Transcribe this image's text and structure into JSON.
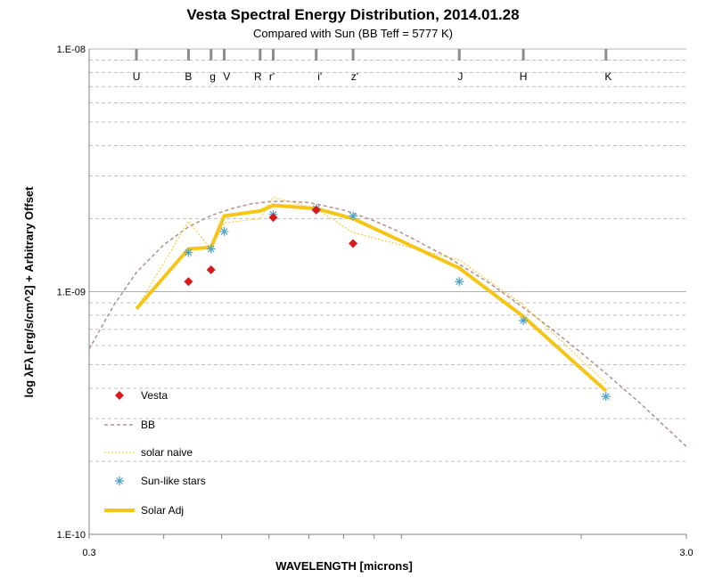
{
  "chart_data": {
    "type": "scatter",
    "title": "Vesta Spectral Energy Distribution, 2014.01.28",
    "subtitle": "Compared with Sun (BB Teff = 5777 K)",
    "xlabel": "WAVELENGTH [microns]",
    "ylabel": "log λFλ [erg/s/cm^2] + Arbitrary Offset",
    "x_scale": "log",
    "y_scale": "log",
    "xlim": [
      0.3,
      3.0
    ],
    "ylim": [
      1e-10,
      1e-08
    ],
    "x_tick_labels": [
      "0.3",
      "3.0"
    ],
    "y_ticks": [
      {
        "value": 1e-08,
        "label": "1.E-08"
      },
      {
        "value": 1e-09,
        "label": "1.E-09"
      },
      {
        "value": 1e-10,
        "label": "1.E-10"
      }
    ],
    "grid": {
      "y_minor_dashed": true,
      "x_minor_ticks": true
    },
    "bands": [
      {
        "label": "U",
        "x": 0.36
      },
      {
        "label": "B",
        "x": 0.44
      },
      {
        "label": "g",
        "x": 0.48
      },
      {
        "label": "V",
        "x": 0.55
      },
      {
        "label": "R",
        "x": 0.64
      },
      {
        "label": "r'",
        "x": 0.62
      },
      {
        "label": "i'",
        "x": 0.77
      },
      {
        "label": "z'",
        "x": 0.91
      },
      {
        "label": "J",
        "x": 1.25
      },
      {
        "label": "H",
        "x": 1.6
      },
      {
        "label": "K",
        "x": 2.2
      }
    ],
    "band_tick_x": [
      0.36,
      0.44,
      0.48,
      0.505,
      0.58,
      0.61,
      0.72,
      0.83,
      1.25,
      1.6,
      2.2
    ],
    "band_label_x": [
      0.36,
      0.44,
      0.483,
      0.51,
      0.575,
      0.607,
      0.73,
      0.835,
      1.255,
      1.6,
      2.22
    ],
    "legend": {
      "placement": "bottom-left"
    },
    "series": [
      {
        "name": "Vesta",
        "style": "marker-diamond",
        "color": "#d7191c",
        "x": [
          0.44,
          0.48,
          0.61,
          0.72,
          0.83
        ],
        "y": [
          1.1e-09,
          1.23e-09,
          2.02e-09,
          2.17e-09,
          1.58e-09
        ]
      },
      {
        "name": "BB",
        "style": "dashed-line",
        "color": "#b09090",
        "x": [
          0.3,
          0.33,
          0.36,
          0.4,
          0.44,
          0.48,
          0.52,
          0.56,
          0.6,
          0.64,
          0.7,
          0.8,
          0.9,
          1.0,
          1.2,
          1.4,
          1.6,
          1.8,
          2.0,
          2.2,
          2.5,
          3.0
        ],
        "y": [
          5.8e-10,
          8.8e-10,
          1.2e-09,
          1.56e-09,
          1.85e-09,
          2.06e-09,
          2.2e-09,
          2.3e-09,
          2.35e-09,
          2.36e-09,
          2.33e-09,
          2.17e-09,
          1.96e-09,
          1.75e-09,
          1.38e-09,
          1.09e-09,
          8.6e-10,
          6.9e-10,
          5.6e-10,
          4.6e-10,
          3.5e-10,
          2.3e-10
        ]
      },
      {
        "name": "solar naive",
        "style": "dotted-line",
        "color": "#f5c518",
        "x": [
          0.36,
          0.44,
          0.48,
          0.505,
          0.58,
          0.61,
          0.72,
          0.83,
          1.25,
          1.6,
          2.2
        ],
        "y": [
          8.5e-10,
          1.95e-09,
          1.5e-09,
          1.92e-09,
          2e-09,
          2.45e-09,
          2.2e-09,
          1.75e-09,
          1.35e-09,
          8.8e-10,
          4.2e-10
        ]
      },
      {
        "name": "Sun-like stars",
        "style": "marker-asterisk",
        "color": "#4fa3c7",
        "x": [
          0.44,
          0.48,
          0.505,
          0.61,
          0.72,
          0.83,
          1.25,
          1.6,
          2.2
        ],
        "y": [
          1.45e-09,
          1.5e-09,
          1.77e-09,
          2.08e-09,
          2.2e-09,
          2.05e-09,
          1.1e-09,
          7.6e-10,
          3.7e-10
        ]
      },
      {
        "name": "Solar Adj",
        "style": "thick-line",
        "color": "#f5c518",
        "x": [
          0.36,
          0.44,
          0.48,
          0.505,
          0.58,
          0.61,
          0.72,
          0.83,
          1.25,
          1.6,
          2.2
        ],
        "y": [
          8.5e-10,
          1.5e-09,
          1.52e-09,
          2.05e-09,
          2.15e-09,
          2.27e-09,
          2.2e-09,
          2e-09,
          1.25e-09,
          7.9e-10,
          3.9e-10
        ]
      }
    ]
  }
}
